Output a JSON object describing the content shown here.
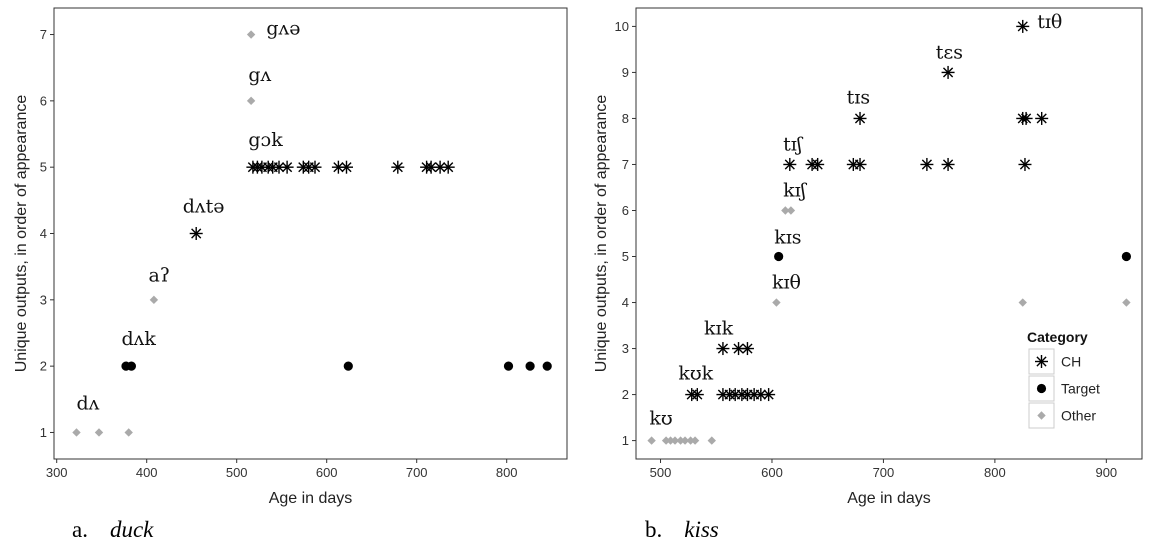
{
  "colors": {
    "CH": "#000000",
    "Target": "#000000",
    "Other": "#aaaaaa",
    "panel_border": "#333333",
    "grid": "none"
  },
  "chart_data": [
    {
      "type": "scatter",
      "title": "",
      "xlabel": "Age in days",
      "ylabel": "Unique outputs, in order of appearance",
      "xlim": [
        297,
        867
      ],
      "ylim": [
        0.6,
        7.4
      ],
      "xticks": [
        300,
        400,
        500,
        600,
        700,
        800
      ],
      "yticks": [
        1,
        2,
        3,
        4,
        5,
        6,
        7
      ],
      "grid": false,
      "legend": false,
      "caption": {
        "letter": "a.",
        "word": "duck"
      },
      "annotations": [
        {
          "text": "dʌ",
          "x": 322,
          "y": 1.35
        },
        {
          "text": "dʌk",
          "x": 372,
          "y": 2.32
        },
        {
          "text": "aʔ",
          "x": 402,
          "y": 3.28
        },
        {
          "text": "dʌtə",
          "x": 440,
          "y": 4.32
        },
        {
          "text": "gɔk",
          "x": 513,
          "y": 5.32
        },
        {
          "text": "gʌ",
          "x": 513,
          "y": 6.3
        },
        {
          "text": "gʌə",
          "x": 533,
          "y": 7.0
        }
      ],
      "series": [
        {
          "name": "CH",
          "marker": "asterisk",
          "points": [
            [
              455,
              4
            ],
            [
              518,
              5
            ],
            [
              523,
              5
            ],
            [
              528,
              5
            ],
            [
              535,
              5
            ],
            [
              540,
              5
            ],
            [
              547,
              5
            ],
            [
              556,
              5
            ],
            [
              574,
              5
            ],
            [
              580,
              5
            ],
            [
              587,
              5
            ],
            [
              613,
              5
            ],
            [
              622,
              5
            ],
            [
              679,
              5
            ],
            [
              711,
              5
            ],
            [
              716,
              5
            ],
            [
              726,
              5
            ],
            [
              735,
              5
            ]
          ]
        },
        {
          "name": "Target",
          "marker": "circle",
          "points": [
            [
              377,
              2
            ],
            [
              383,
              2
            ],
            [
              624,
              2
            ],
            [
              802,
              2
            ],
            [
              826,
              2
            ],
            [
              845,
              2
            ]
          ]
        },
        {
          "name": "Other",
          "marker": "diamond",
          "points": [
            [
              322,
              1
            ],
            [
              347,
              1
            ],
            [
              380,
              1
            ],
            [
              408,
              3
            ],
            [
              516,
              6
            ],
            [
              516,
              7
            ]
          ]
        }
      ]
    },
    {
      "type": "scatter",
      "title": "",
      "xlabel": "Age in days",
      "ylabel": "Unique outputs, in order of appearance",
      "xlim": [
        478,
        932
      ],
      "ylim": [
        0.6,
        10.4
      ],
      "xticks": [
        500,
        600,
        700,
        800,
        900
      ],
      "yticks": [
        1,
        2,
        3,
        4,
        5,
        6,
        7,
        8,
        9,
        10
      ],
      "grid": false,
      "legend": true,
      "legend_position": "right",
      "legend_title": "Category",
      "legend_entries": [
        "CH",
        "Target",
        "Other"
      ],
      "caption": {
        "letter": "b.",
        "word": "kiss"
      },
      "annotations": [
        {
          "text": "kʊ",
          "x": 490,
          "y": 1.35
        },
        {
          "text": "kʊk",
          "x": 516,
          "y": 2.33
        },
        {
          "text": "kɪk",
          "x": 539,
          "y": 3.3
        },
        {
          "text": "kɪθ",
          "x": 600,
          "y": 4.3
        },
        {
          "text": "kɪs",
          "x": 602,
          "y": 5.28
        },
        {
          "text": "kɪʃ",
          "x": 610,
          "y": 6.3
        },
        {
          "text": "tɪʃ",
          "x": 610,
          "y": 7.3
        },
        {
          "text": "tɪs",
          "x": 667,
          "y": 8.33
        },
        {
          "text": "tɛs",
          "x": 747,
          "y": 9.3
        },
        {
          "text": "tɪθ",
          "x": 838,
          "y": 9.97
        }
      ],
      "series": [
        {
          "name": "CH",
          "marker": "asterisk",
          "points": [
            [
              528,
              2
            ],
            [
              533,
              2
            ],
            [
              556,
              2
            ],
            [
              562,
              2
            ],
            [
              567,
              2
            ],
            [
              573,
              2
            ],
            [
              578,
              2
            ],
            [
              584,
              2
            ],
            [
              590,
              2
            ],
            [
              597,
              2
            ],
            [
              556,
              3
            ],
            [
              570,
              3
            ],
            [
              578,
              3
            ],
            [
              616,
              7
            ],
            [
              636,
              7
            ],
            [
              641,
              7
            ],
            [
              673,
              7
            ],
            [
              679,
              7
            ],
            [
              739,
              7
            ],
            [
              758,
              7
            ],
            [
              827,
              7
            ],
            [
              679,
              8
            ],
            [
              825,
              8
            ],
            [
              828,
              8
            ],
            [
              842,
              8
            ],
            [
              758,
              9
            ],
            [
              825,
              10
            ]
          ]
        },
        {
          "name": "Target",
          "marker": "circle",
          "points": [
            [
              606,
              5
            ],
            [
              918,
              5
            ]
          ]
        },
        {
          "name": "Other",
          "marker": "diamond",
          "points": [
            [
              492,
              1
            ],
            [
              505,
              1
            ],
            [
              509,
              1
            ],
            [
              513,
              1
            ],
            [
              518,
              1
            ],
            [
              522,
              1
            ],
            [
              527,
              1
            ],
            [
              531,
              1
            ],
            [
              546,
              1
            ],
            [
              604,
              4
            ],
            [
              612,
              6
            ],
            [
              617,
              6
            ],
            [
              825,
              4
            ],
            [
              918,
              4
            ]
          ]
        }
      ]
    }
  ]
}
